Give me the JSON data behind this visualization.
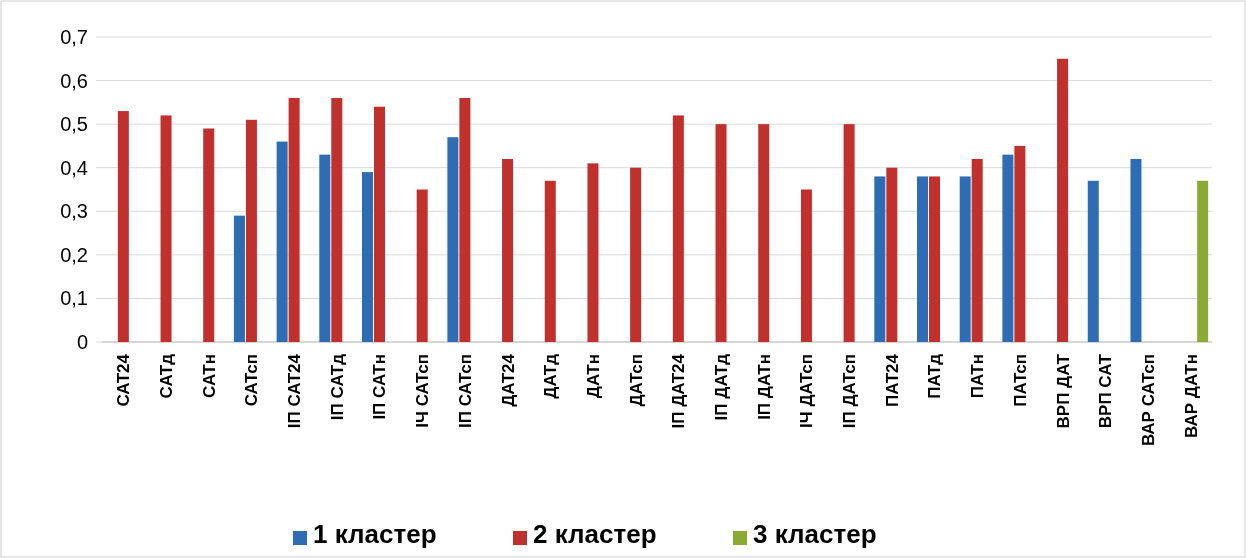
{
  "chart_data": {
    "type": "bar",
    "categories": [
      "САТ24",
      "САТд",
      "САТн",
      "САТсп",
      "ІП САТ24",
      "ІП САТд",
      "ІП САТн",
      "ІЧ САТсп",
      "ІП САТсп",
      "ДАТ24",
      "ДАТд",
      "ДАТн",
      "ДАТсп",
      "ІП ДАТ24",
      "ІП ДАТд",
      "ІП ДАТн",
      "ІЧ ДАТсп",
      "ІП ДАТсп",
      "ПАТ24",
      "ПАТд",
      "ПАТн",
      "ПАТсп",
      "ВРП ДАТ",
      "ВРП САТ",
      "ВАР САТсп",
      "ВАР ДАТн"
    ],
    "series": [
      {
        "name": "1 кластер",
        "color": "#2e6db4",
        "values": [
          null,
          null,
          null,
          0.29,
          0.46,
          0.43,
          0.39,
          null,
          0.47,
          null,
          null,
          null,
          null,
          null,
          null,
          null,
          null,
          null,
          0.38,
          0.38,
          0.38,
          0.43,
          null,
          0.37,
          0.42,
          null
        ]
      },
      {
        "name": "2 кластер",
        "color": "#c0302c",
        "values": [
          0.53,
          0.52,
          0.49,
          0.51,
          0.56,
          0.56,
          0.54,
          0.35,
          0.56,
          0.42,
          0.37,
          0.41,
          0.4,
          0.52,
          0.5,
          0.5,
          0.35,
          0.5,
          0.4,
          0.38,
          0.42,
          0.45,
          0.65,
          null,
          null,
          null
        ]
      },
      {
        "name": "3 кластер",
        "color": "#8aaa35",
        "values": [
          null,
          null,
          null,
          null,
          null,
          null,
          null,
          null,
          null,
          null,
          null,
          null,
          null,
          null,
          null,
          null,
          null,
          null,
          null,
          null,
          null,
          null,
          null,
          null,
          null,
          0.37
        ]
      }
    ],
    "ylim": [
      0,
      0.7
    ],
    "yticks": [
      {
        "value": 0,
        "label": "0"
      },
      {
        "value": 0.1,
        "label": "0,1"
      },
      {
        "value": 0.2,
        "label": "0,2"
      },
      {
        "value": 0.3,
        "label": "0,3"
      },
      {
        "value": 0.4,
        "label": "0,4"
      },
      {
        "value": 0.5,
        "label": "0,5"
      },
      {
        "value": 0.6,
        "label": "0,6"
      },
      {
        "value": 0.7,
        "label": "0,7"
      }
    ],
    "grid": "y",
    "legend": "bottom"
  }
}
